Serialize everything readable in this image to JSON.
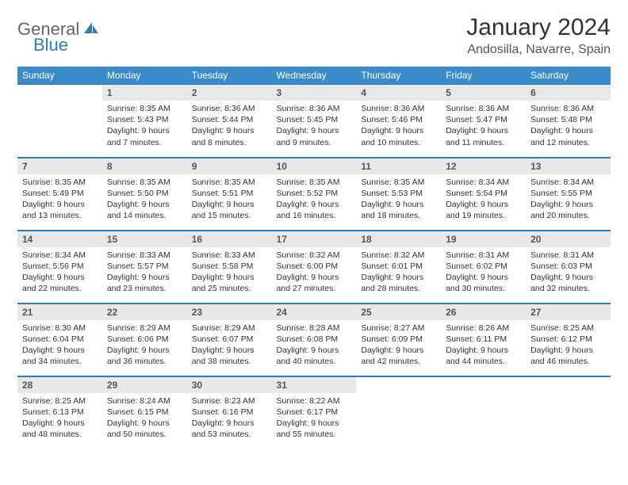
{
  "brand": {
    "text1": "General",
    "text2": "Blue",
    "icon_color": "#2e7cc0"
  },
  "header": {
    "title": "January 2024",
    "location": "Andosilla, Navarre, Spain"
  },
  "colors": {
    "header_bg": "#3b8bc8",
    "header_text": "#ffffff",
    "daynum_bg": "#e8e8e8",
    "rule": "#2e7cc0"
  },
  "weekdays": [
    "Sunday",
    "Monday",
    "Tuesday",
    "Wednesday",
    "Thursday",
    "Friday",
    "Saturday"
  ],
  "weeks": [
    [
      null,
      {
        "n": "1",
        "sr": "8:35 AM",
        "ss": "5:43 PM",
        "dl": "9 hours and 7 minutes."
      },
      {
        "n": "2",
        "sr": "8:36 AM",
        "ss": "5:44 PM",
        "dl": "9 hours and 8 minutes."
      },
      {
        "n": "3",
        "sr": "8:36 AM",
        "ss": "5:45 PM",
        "dl": "9 hours and 9 minutes."
      },
      {
        "n": "4",
        "sr": "8:36 AM",
        "ss": "5:46 PM",
        "dl": "9 hours and 10 minutes."
      },
      {
        "n": "5",
        "sr": "8:36 AM",
        "ss": "5:47 PM",
        "dl": "9 hours and 11 minutes."
      },
      {
        "n": "6",
        "sr": "8:36 AM",
        "ss": "5:48 PM",
        "dl": "9 hours and 12 minutes."
      }
    ],
    [
      {
        "n": "7",
        "sr": "8:35 AM",
        "ss": "5:49 PM",
        "dl": "9 hours and 13 minutes."
      },
      {
        "n": "8",
        "sr": "8:35 AM",
        "ss": "5:50 PM",
        "dl": "9 hours and 14 minutes."
      },
      {
        "n": "9",
        "sr": "8:35 AM",
        "ss": "5:51 PM",
        "dl": "9 hours and 15 minutes."
      },
      {
        "n": "10",
        "sr": "8:35 AM",
        "ss": "5:52 PM",
        "dl": "9 hours and 16 minutes."
      },
      {
        "n": "11",
        "sr": "8:35 AM",
        "ss": "5:53 PM",
        "dl": "9 hours and 18 minutes."
      },
      {
        "n": "12",
        "sr": "8:34 AM",
        "ss": "5:54 PM",
        "dl": "9 hours and 19 minutes."
      },
      {
        "n": "13",
        "sr": "8:34 AM",
        "ss": "5:55 PM",
        "dl": "9 hours and 20 minutes."
      }
    ],
    [
      {
        "n": "14",
        "sr": "8:34 AM",
        "ss": "5:56 PM",
        "dl": "9 hours and 22 minutes."
      },
      {
        "n": "15",
        "sr": "8:33 AM",
        "ss": "5:57 PM",
        "dl": "9 hours and 23 minutes."
      },
      {
        "n": "16",
        "sr": "8:33 AM",
        "ss": "5:58 PM",
        "dl": "9 hours and 25 minutes."
      },
      {
        "n": "17",
        "sr": "8:32 AM",
        "ss": "6:00 PM",
        "dl": "9 hours and 27 minutes."
      },
      {
        "n": "18",
        "sr": "8:32 AM",
        "ss": "6:01 PM",
        "dl": "9 hours and 28 minutes."
      },
      {
        "n": "19",
        "sr": "8:31 AM",
        "ss": "6:02 PM",
        "dl": "9 hours and 30 minutes."
      },
      {
        "n": "20",
        "sr": "8:31 AM",
        "ss": "6:03 PM",
        "dl": "9 hours and 32 minutes."
      }
    ],
    [
      {
        "n": "21",
        "sr": "8:30 AM",
        "ss": "6:04 PM",
        "dl": "9 hours and 34 minutes."
      },
      {
        "n": "22",
        "sr": "8:29 AM",
        "ss": "6:06 PM",
        "dl": "9 hours and 36 minutes."
      },
      {
        "n": "23",
        "sr": "8:29 AM",
        "ss": "6:07 PM",
        "dl": "9 hours and 38 minutes."
      },
      {
        "n": "24",
        "sr": "8:28 AM",
        "ss": "6:08 PM",
        "dl": "9 hours and 40 minutes."
      },
      {
        "n": "25",
        "sr": "8:27 AM",
        "ss": "6:09 PM",
        "dl": "9 hours and 42 minutes."
      },
      {
        "n": "26",
        "sr": "8:26 AM",
        "ss": "6:11 PM",
        "dl": "9 hours and 44 minutes."
      },
      {
        "n": "27",
        "sr": "8:25 AM",
        "ss": "6:12 PM",
        "dl": "9 hours and 46 minutes."
      }
    ],
    [
      {
        "n": "28",
        "sr": "8:25 AM",
        "ss": "6:13 PM",
        "dl": "9 hours and 48 minutes."
      },
      {
        "n": "29",
        "sr": "8:24 AM",
        "ss": "6:15 PM",
        "dl": "9 hours and 50 minutes."
      },
      {
        "n": "30",
        "sr": "8:23 AM",
        "ss": "6:16 PM",
        "dl": "9 hours and 53 minutes."
      },
      {
        "n": "31",
        "sr": "8:22 AM",
        "ss": "6:17 PM",
        "dl": "9 hours and 55 minutes."
      },
      null,
      null,
      null
    ]
  ],
  "labels": {
    "sunrise": "Sunrise:",
    "sunset": "Sunset:",
    "daylight": "Daylight:"
  }
}
